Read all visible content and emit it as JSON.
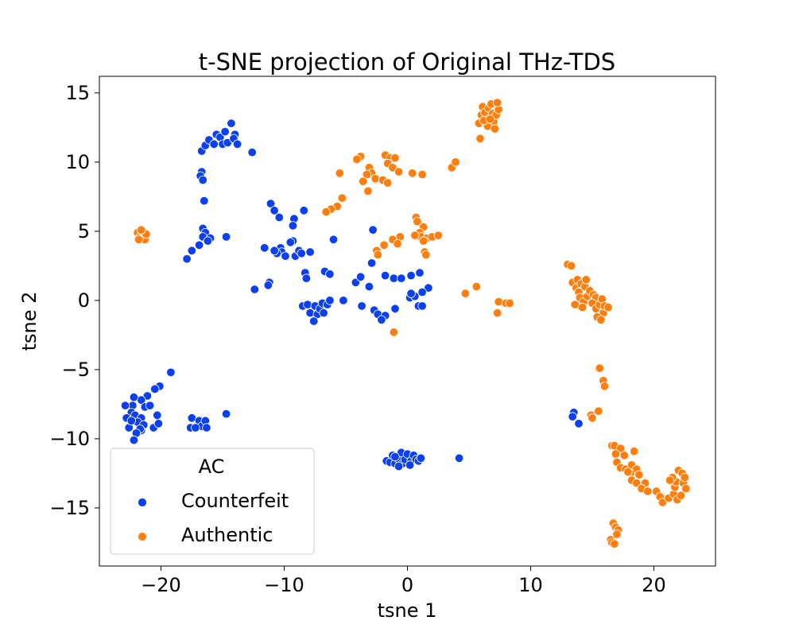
{
  "chart_data": {
    "type": "scatter",
    "title": "t-SNE projection of Original THz-TDS",
    "xlabel": "tsne 1",
    "ylabel": "tsne 2",
    "xlim": [
      -25,
      25
    ],
    "ylim": [
      -19.2,
      16.2
    ],
    "xticks": [
      -20,
      -10,
      0,
      10,
      20
    ],
    "yticks": [
      -15,
      -10,
      -5,
      0,
      5,
      10,
      15
    ],
    "xtick_labels": [
      "−20",
      "−10",
      "0",
      "10",
      "20"
    ],
    "ytick_labels": [
      "−15",
      "−10",
      "−5",
      "0",
      "5",
      "10",
      "15"
    ],
    "grid": false,
    "legend": {
      "title": "AC",
      "placement": "bottom-left"
    },
    "series": [
      {
        "name": "Counterfeit",
        "color": "#0a3ff2",
        "points": [
          [
            -16.7,
            10.8
          ],
          [
            -16.4,
            11.2
          ],
          [
            -16.1,
            11.6
          ],
          [
            -15.7,
            11.3
          ],
          [
            -15.5,
            12.0
          ],
          [
            -15.2,
            11.8
          ],
          [
            -15.0,
            11.3
          ],
          [
            -14.8,
            12.2
          ],
          [
            -14.6,
            11.4
          ],
          [
            -14.3,
            12.8
          ],
          [
            -14.0,
            12.0
          ],
          [
            -14.1,
            11.7
          ],
          [
            -13.8,
            11.3
          ],
          [
            -12.6,
            10.7
          ],
          [
            -16.7,
            9.3
          ],
          [
            -16.8,
            9.0
          ],
          [
            -16.6,
            8.7
          ],
          [
            -16.5,
            7.2
          ],
          [
            -16.6,
            5.2
          ],
          [
            -16.4,
            4.9
          ],
          [
            -16.6,
            4.6
          ],
          [
            -16.0,
            4.5
          ],
          [
            -16.2,
            4.3
          ],
          [
            -16.9,
            4.0
          ],
          [
            -17.5,
            3.6
          ],
          [
            -17.9,
            3.0
          ],
          [
            -14.7,
            4.6
          ],
          [
            -11.1,
            7.0
          ],
          [
            -10.8,
            6.5
          ],
          [
            -10.4,
            6.0
          ],
          [
            -9.2,
            5.9
          ],
          [
            -9.3,
            5.4
          ],
          [
            -8.4,
            6.5
          ],
          [
            -9.3,
            4.3
          ],
          [
            -9.5,
            4.2
          ],
          [
            -10.3,
            3.8
          ],
          [
            -10.2,
            3.5
          ],
          [
            -10.6,
            3.4
          ],
          [
            -10.8,
            3.6
          ],
          [
            -11.6,
            3.8
          ],
          [
            -9.9,
            3.2
          ],
          [
            -9.1,
            3.2
          ],
          [
            -8.8,
            3.6
          ],
          [
            -8.6,
            3.4
          ],
          [
            -7.9,
            3.5
          ],
          [
            -11.2,
            1.3
          ],
          [
            -11.3,
            1.1
          ],
          [
            -12.4,
            0.8
          ],
          [
            -6.0,
            4.4
          ],
          [
            -8.3,
            2.0
          ],
          [
            -8.2,
            1.6
          ],
          [
            -6.7,
            2.1
          ],
          [
            -6.3,
            1.9
          ],
          [
            -4.2,
            1.3
          ],
          [
            -3.8,
            1.7
          ],
          [
            -2.9,
            2.7
          ],
          [
            -1.8,
            1.8
          ],
          [
            -1.1,
            1.6
          ],
          [
            -0.5,
            1.6
          ],
          [
            0.3,
            1.8
          ],
          [
            1.0,
            2.0
          ],
          [
            1.7,
            0.9
          ],
          [
            1.2,
            0.6
          ],
          [
            -2.8,
            5.1
          ],
          [
            -3.1,
            1.0
          ],
          [
            -8.5,
            -0.4
          ],
          [
            -8.1,
            -0.3
          ],
          [
            -7.9,
            -0.9
          ],
          [
            -7.5,
            -0.4
          ],
          [
            -7.3,
            -1.0
          ],
          [
            -7.1,
            -0.6
          ],
          [
            -6.9,
            -0.2
          ],
          [
            -6.5,
            -0.3
          ],
          [
            -6.3,
            0.0
          ],
          [
            -5.2,
            0.0
          ],
          [
            -7.6,
            -1.5
          ],
          [
            -6.8,
            -0.9
          ],
          [
            -3.7,
            -0.4
          ],
          [
            -2.7,
            -0.7
          ],
          [
            -2.4,
            -1.0
          ],
          [
            -1.8,
            -1.1
          ],
          [
            -2.1,
            -1.4
          ],
          [
            -1.0,
            -0.6
          ],
          [
            0.2,
            0.2
          ],
          [
            0.6,
            0.3
          ],
          [
            0.9,
            -0.4
          ],
          [
            1.2,
            -0.4
          ],
          [
            0.3,
            0.5
          ],
          [
            -19.2,
            -5.2
          ],
          [
            -20.1,
            -6.2
          ],
          [
            -20.5,
            -6.4
          ],
          [
            -21.1,
            -6.9
          ],
          [
            -21.6,
            -7.2
          ],
          [
            -22.2,
            -7.0
          ],
          [
            -22.3,
            -7.6
          ],
          [
            -22.9,
            -7.6
          ],
          [
            -22.4,
            -8.1
          ],
          [
            -22.8,
            -8.5
          ],
          [
            -22.1,
            -8.3
          ],
          [
            -21.6,
            -8.5
          ],
          [
            -21.9,
            -8.8
          ],
          [
            -21.3,
            -7.7
          ],
          [
            -20.9,
            -7.6
          ],
          [
            -21.4,
            -9.0
          ],
          [
            -21.6,
            -9.4
          ],
          [
            -21.7,
            -9.3
          ],
          [
            -22.0,
            -9.6
          ],
          [
            -22.6,
            -9.2
          ],
          [
            -22.2,
            -10.1
          ],
          [
            -20.6,
            -9.2
          ],
          [
            -20.2,
            -8.9
          ],
          [
            -20.3,
            -8.3
          ],
          [
            -22.4,
            -8.7
          ],
          [
            -17.5,
            -8.5
          ],
          [
            -17.6,
            -9.2
          ],
          [
            -16.9,
            -8.7
          ],
          [
            -16.7,
            -9.1
          ],
          [
            -16.4,
            -8.7
          ],
          [
            -16.3,
            -9.2
          ],
          [
            -17.2,
            -9.2
          ],
          [
            -14.7,
            -8.2
          ],
          [
            -1.7,
            -11.6
          ],
          [
            -1.4,
            -11.7
          ],
          [
            -1.2,
            -11.2
          ],
          [
            -1.0,
            -11.8
          ],
          [
            -0.8,
            -11.4
          ],
          [
            -0.5,
            -11.0
          ],
          [
            -0.4,
            -11.8
          ],
          [
            -0.2,
            -11.5
          ],
          [
            0.0,
            -11.1
          ],
          [
            0.3,
            -11.6
          ],
          [
            0.5,
            -11.2
          ],
          [
            0.7,
            -11.5
          ],
          [
            0.9,
            -11.6
          ],
          [
            1.1,
            -11.4
          ],
          [
            -1.0,
            -11.3
          ],
          [
            0.2,
            -11.9
          ],
          [
            -0.7,
            -12.0
          ],
          [
            4.2,
            -11.4
          ],
          [
            13.5,
            -8.1
          ],
          [
            13.4,
            -8.4
          ],
          [
            13.9,
            -8.9
          ]
        ]
      },
      {
        "name": "Authentic",
        "color": "#ff7f0e",
        "points": [
          [
            -21.9,
            4.9
          ],
          [
            -21.7,
            4.6
          ],
          [
            -21.5,
            5.0
          ],
          [
            -21.3,
            4.4
          ],
          [
            -21.2,
            4.8
          ],
          [
            -21.8,
            4.4
          ],
          [
            -21.6,
            5.1
          ],
          [
            5.8,
            12.8
          ],
          [
            6.0,
            13.4
          ],
          [
            6.1,
            14.0
          ],
          [
            6.3,
            13.6
          ],
          [
            6.6,
            13.9
          ],
          [
            6.8,
            14.2
          ],
          [
            6.9,
            13.5
          ],
          [
            7.0,
            12.9
          ],
          [
            7.2,
            13.4
          ],
          [
            7.4,
            13.8
          ],
          [
            7.3,
            14.3
          ],
          [
            6.5,
            12.6
          ],
          [
            5.9,
            11.7
          ],
          [
            6.2,
            13.0
          ],
          [
            7.1,
            12.4
          ],
          [
            6.7,
            13.1
          ],
          [
            -3.8,
            10.4
          ],
          [
            -4.1,
            10.2
          ],
          [
            -3.1,
            9.6
          ],
          [
            -2.9,
            9.2
          ],
          [
            -3.3,
            9.1
          ],
          [
            -2.6,
            8.8
          ],
          [
            -3.6,
            8.6
          ],
          [
            -2.0,
            8.7
          ],
          [
            -1.6,
            8.5
          ],
          [
            -1.8,
            10.5
          ],
          [
            -1.4,
            10.3
          ],
          [
            -1.6,
            9.9
          ],
          [
            -1.2,
            9.6
          ],
          [
            -1.0,
            10.3
          ],
          [
            -0.7,
            9.3
          ],
          [
            0.4,
            9.2
          ],
          [
            1.2,
            9.1
          ],
          [
            3.6,
            9.6
          ],
          [
            3.9,
            10.0
          ],
          [
            -5.5,
            9.2
          ],
          [
            -3.2,
            7.9
          ],
          [
            -5.3,
            7.4
          ],
          [
            -5.7,
            6.8
          ],
          [
            -6.2,
            6.6
          ],
          [
            -6.6,
            6.4
          ],
          [
            0.7,
            6.0
          ],
          [
            0.8,
            5.7
          ],
          [
            1.3,
            5.3
          ],
          [
            1.0,
            4.9
          ],
          [
            1.1,
            4.6
          ],
          [
            1.6,
            4.5
          ],
          [
            1.3,
            4.3
          ],
          [
            2.0,
            4.6
          ],
          [
            2.5,
            4.7
          ],
          [
            -0.6,
            4.6
          ],
          [
            -1.2,
            4.4
          ],
          [
            -0.8,
            4.1
          ],
          [
            -1.9,
            4.0
          ],
          [
            -2.5,
            3.6
          ],
          [
            -2.4,
            3.3
          ],
          [
            0.6,
            4.7
          ],
          [
            1.4,
            3.5
          ],
          [
            1.5,
            3.3
          ],
          [
            4.7,
            0.5
          ],
          [
            5.6,
            1.0
          ],
          [
            7.4,
            -0.1
          ],
          [
            7.3,
            -0.9
          ],
          [
            8.0,
            -0.2
          ],
          [
            8.3,
            -0.2
          ],
          [
            -1.1,
            -2.3
          ],
          [
            13.0,
            2.6
          ],
          [
            13.3,
            2.5
          ],
          [
            13.4,
            1.3
          ],
          [
            13.8,
            1.5
          ],
          [
            13.7,
            0.9
          ],
          [
            13.9,
            0.6
          ],
          [
            14.1,
            1.2
          ],
          [
            14.4,
            1.0
          ],
          [
            14.5,
            1.5
          ],
          [
            14.0,
            0.2
          ],
          [
            14.3,
            -0.1
          ],
          [
            14.6,
            0.3
          ],
          [
            14.8,
            0.7
          ],
          [
            15.1,
            0.4
          ],
          [
            15.3,
            0.2
          ],
          [
            15.0,
            -0.2
          ],
          [
            15.3,
            -0.6
          ],
          [
            15.6,
            -0.3
          ],
          [
            15.8,
            0.1
          ],
          [
            15.9,
            -0.9
          ],
          [
            16.0,
            -0.4
          ],
          [
            15.4,
            -1.2
          ],
          [
            15.7,
            -1.4
          ],
          [
            13.6,
            -0.3
          ],
          [
            14.2,
            -0.5
          ],
          [
            16.3,
            -0.5
          ],
          [
            15.6,
            -4.9
          ],
          [
            15.9,
            -5.8
          ],
          [
            16.0,
            -6.2
          ],
          [
            14.9,
            -8.3
          ],
          [
            15.0,
            -8.5
          ],
          [
            15.5,
            -8.0
          ],
          [
            16.6,
            -10.5
          ],
          [
            16.8,
            -10.5
          ],
          [
            17.3,
            -10.7
          ],
          [
            16.9,
            -11.1
          ],
          [
            17.6,
            -11.2
          ],
          [
            17.0,
            -11.7
          ],
          [
            17.3,
            -12.1
          ],
          [
            17.7,
            -12.2
          ],
          [
            18.2,
            -11.9
          ],
          [
            18.4,
            -10.9
          ],
          [
            18.6,
            -12.2
          ],
          [
            18.1,
            -12.5
          ],
          [
            17.9,
            -12.4
          ],
          [
            18.8,
            -12.6
          ],
          [
            18.2,
            -13.0
          ],
          [
            18.6,
            -13.2
          ],
          [
            19.3,
            -13.2
          ],
          [
            19.0,
            -13.6
          ],
          [
            19.5,
            -13.8
          ],
          [
            20.2,
            -13.8
          ],
          [
            20.5,
            -14.2
          ],
          [
            20.7,
            -14.6
          ],
          [
            21.2,
            -14.3
          ],
          [
            21.6,
            -14.0
          ],
          [
            21.9,
            -14.4
          ],
          [
            21.7,
            -13.5
          ],
          [
            21.8,
            -13.1
          ],
          [
            21.5,
            -12.8
          ],
          [
            22.0,
            -12.3
          ],
          [
            22.3,
            -12.5
          ],
          [
            22.4,
            -13.2
          ],
          [
            22.6,
            -13.6
          ],
          [
            22.2,
            -14.1
          ],
          [
            21.3,
            -13.0
          ],
          [
            22.5,
            -12.8
          ]
        ]
      },
      {
        "name": "",
        "color": "#ff7f0e",
        "points": [
          [
            16.7,
            -16.1
          ],
          [
            16.9,
            -16.4
          ],
          [
            17.1,
            -16.6
          ],
          [
            16.5,
            -17.3
          ],
          [
            16.6,
            -17.5
          ],
          [
            16.8,
            -17.6
          ],
          [
            17.0,
            -16.9
          ]
        ]
      }
    ]
  }
}
